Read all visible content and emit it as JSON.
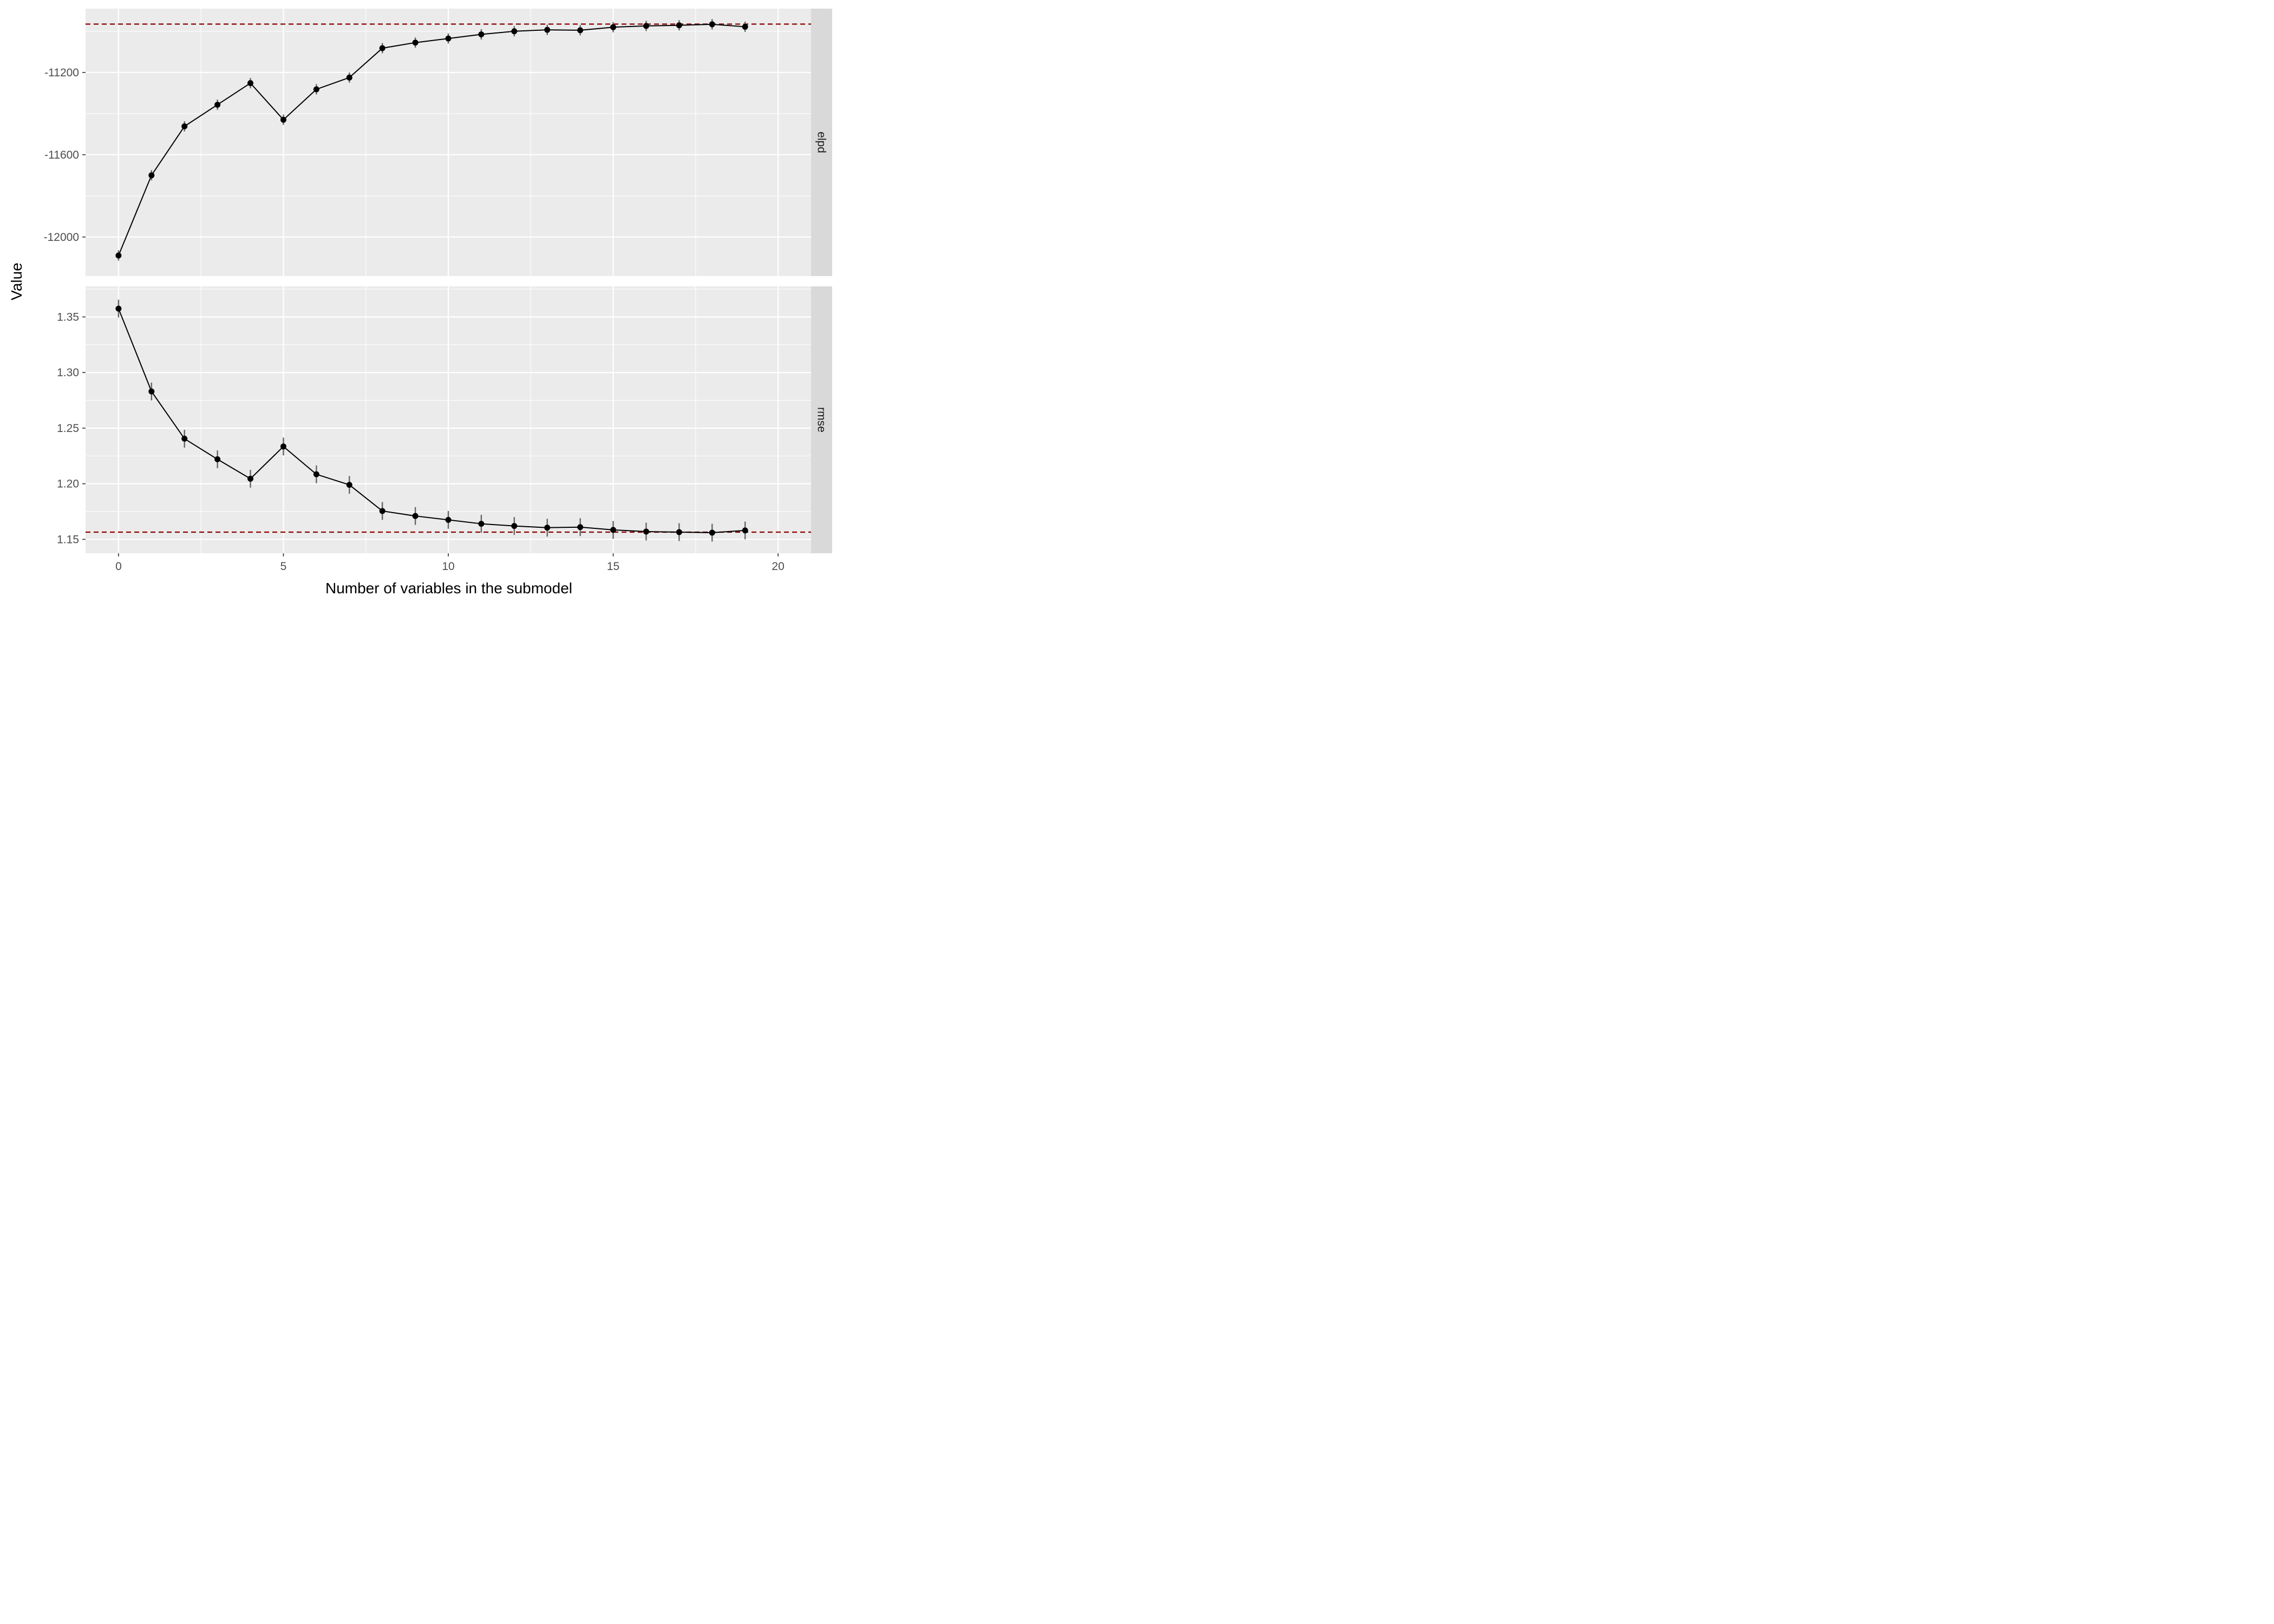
{
  "chart_data": {
    "type": "line",
    "xlabel": "Number of variables in the submodel",
    "ylabel": "Value",
    "xlim": [
      -1,
      21
    ],
    "x_ticks": [
      0,
      5,
      10,
      15,
      20
    ],
    "x_tick_labels": [
      "0",
      "5",
      "10",
      "15",
      "20"
    ],
    "grid": true,
    "colors": {
      "panel_bg": "#ebebeb",
      "strip_bg": "#d9d9d9",
      "grid_major": "#ffffff",
      "line": "#000000",
      "point": "#000000",
      "error_bar": "#666666",
      "reference_line": "#8b0000"
    },
    "panels": [
      {
        "strip_label": "elpd",
        "ylim": [
          -12190,
          -10890
        ],
        "y_ticks": [
          -12000,
          -11600,
          -11200
        ],
        "y_tick_labels": [
          "-12000",
          "-11600",
          "-11200"
        ],
        "reference_value": -10965,
        "x": [
          0,
          1,
          2,
          3,
          4,
          5,
          6,
          7,
          8,
          9,
          10,
          11,
          12,
          13,
          14,
          15,
          16,
          17,
          18,
          19
        ],
        "values": [
          -12090,
          -11700,
          -11462,
          -11357,
          -11252,
          -11430,
          -11282,
          -11225,
          -11082,
          -11055,
          -11035,
          -11015,
          -11000,
          -10993,
          -10995,
          -10980,
          -10974,
          -10971,
          -10966,
          -10978
        ],
        "error": [
          25,
          25,
          25,
          25,
          25,
          25,
          25,
          25,
          25,
          25,
          25,
          25,
          25,
          25,
          25,
          25,
          25,
          25,
          25,
          25
        ]
      },
      {
        "strip_label": "rmse",
        "ylim": [
          1.1375,
          1.3775
        ],
        "y_ticks": [
          1.15,
          1.2,
          1.25,
          1.3,
          1.35
        ],
        "y_tick_labels": [
          "1.15",
          "1.20",
          "1.25",
          "1.30",
          "1.35"
        ],
        "reference_value": 1.1565,
        "x": [
          0,
          1,
          2,
          3,
          4,
          5,
          6,
          7,
          8,
          9,
          10,
          11,
          12,
          13,
          14,
          15,
          16,
          17,
          18,
          19
        ],
        "values": [
          1.3575,
          1.283,
          1.2405,
          1.222,
          1.2045,
          1.2335,
          1.2085,
          1.199,
          1.1755,
          1.171,
          1.1675,
          1.164,
          1.162,
          1.1605,
          1.161,
          1.1585,
          1.157,
          1.1565,
          1.156,
          1.158
        ],
        "error": [
          0.008,
          0.008,
          0.008,
          0.008,
          0.008,
          0.008,
          0.008,
          0.008,
          0.008,
          0.008,
          0.008,
          0.008,
          0.008,
          0.008,
          0.008,
          0.008,
          0.008,
          0.008,
          0.008,
          0.008
        ]
      }
    ]
  }
}
